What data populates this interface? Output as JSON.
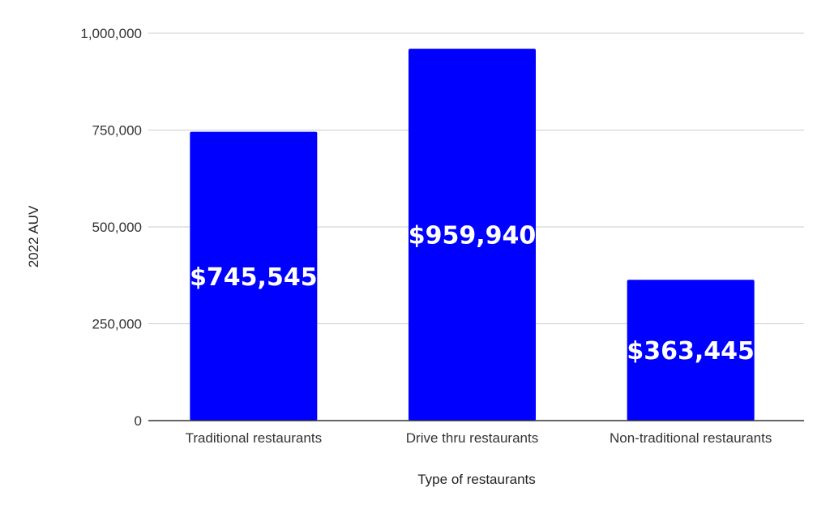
{
  "chart_data": {
    "type": "bar",
    "categories": [
      "Traditional restaurants",
      "Drive thru restaurants",
      "Non-traditional restaurants"
    ],
    "values": [
      745545,
      959940,
      363445
    ],
    "data_labels": [
      "$745,545",
      "$959,940",
      "$363,445"
    ],
    "title": "",
    "xlabel": "Type of restaurants",
    "ylabel": "2022 AUV",
    "ylim": [
      0,
      1000000
    ],
    "yticks": [
      0,
      250000,
      500000,
      750000,
      1000000
    ],
    "ytick_labels": [
      "0",
      "250,000",
      "500,000",
      "750,000",
      "1,000,000"
    ],
    "grid": true,
    "legend": "none",
    "bar_color": "#0000ff",
    "grid_color": "#cccccc",
    "axis_color": "#333333"
  }
}
